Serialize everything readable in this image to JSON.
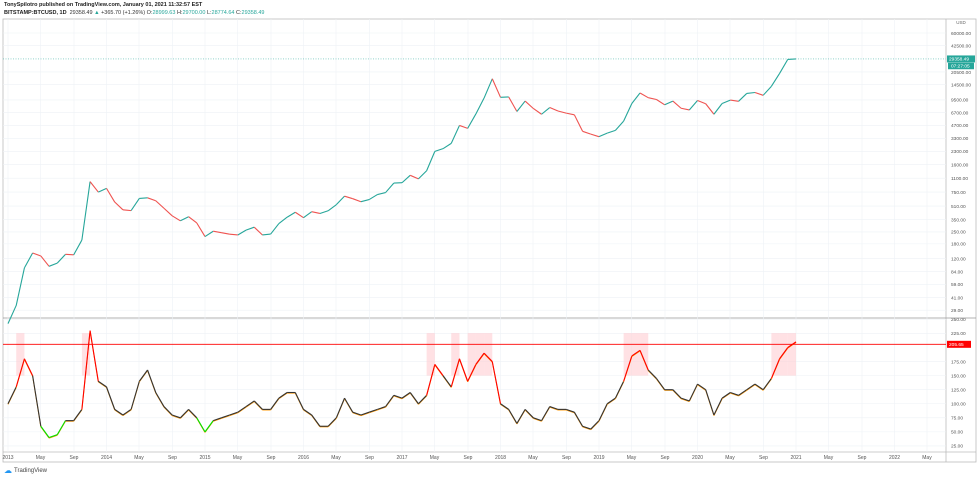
{
  "header": {
    "publisher_line": "TonySpilotro published on TradingView.com, January 01, 2021 11:32:57 EST",
    "symbol": "BITSTAMP:BTCUSD, 1D",
    "last": "29358.49",
    "change": "+365.70 (+1.26%)",
    "open_label": "O:",
    "open": "28999.63",
    "high_label": "H:",
    "high": "29700.00",
    "low_label": "L:",
    "low": "28774.64",
    "close_label": "C:",
    "close": "29358.49"
  },
  "price_axis": {
    "currency": "USD",
    "ticks": [
      60000,
      42500,
      20500,
      14500,
      9500,
      6700,
      4700,
      3300,
      2300,
      1600,
      1100,
      750,
      510,
      350,
      250,
      180,
      120,
      84,
      59,
      41,
      29
    ],
    "last_price_badge": "29358.49",
    "countdown_badge": "07:27:05"
  },
  "indicator_axis": {
    "ticks": [
      250,
      225,
      175,
      150,
      125,
      100,
      75,
      50,
      25
    ],
    "threshold_badge": "205.65"
  },
  "time_axis": {
    "labels": [
      {
        "t": "2013",
        "d": 2013.0
      },
      {
        "t": "May",
        "d": 2013.33
      },
      {
        "t": "Sep",
        "d": 2013.67
      },
      {
        "t": "2014",
        "d": 2014.0
      },
      {
        "t": "May",
        "d": 2014.33
      },
      {
        "t": "Sep",
        "d": 2014.67
      },
      {
        "t": "2015",
        "d": 2015.0
      },
      {
        "t": "May",
        "d": 2015.33
      },
      {
        "t": "Sep",
        "d": 2015.67
      },
      {
        "t": "2016",
        "d": 2016.0
      },
      {
        "t": "May",
        "d": 2016.33
      },
      {
        "t": "Sep",
        "d": 2016.67
      },
      {
        "t": "2017",
        "d": 2017.0
      },
      {
        "t": "May",
        "d": 2017.33
      },
      {
        "t": "Sep",
        "d": 2017.67
      },
      {
        "t": "2018",
        "d": 2018.0
      },
      {
        "t": "May",
        "d": 2018.33
      },
      {
        "t": "Sep",
        "d": 2018.67
      },
      {
        "t": "2019",
        "d": 2019.0
      },
      {
        "t": "May",
        "d": 2019.33
      },
      {
        "t": "Sep",
        "d": 2019.67
      },
      {
        "t": "2020",
        "d": 2020.0
      },
      {
        "t": "May",
        "d": 2020.33
      },
      {
        "t": "Sep",
        "d": 2020.67
      },
      {
        "t": "2021",
        "d": 2021.0
      },
      {
        "t": "May",
        "d": 2021.33
      },
      {
        "t": "Sep",
        "d": 2021.67
      },
      {
        "t": "2022",
        "d": 2022.0
      },
      {
        "t": "May",
        "d": 2022.33
      }
    ]
  },
  "branding": {
    "logo_text": "TradingView"
  },
  "colors": {
    "up": "#26a69a",
    "down": "#ef5350",
    "threshold": "#ff0000",
    "overbought": "#ff0000",
    "oversold": "#00e000",
    "indicator_line": "#333333",
    "indicator_shadow": "#ff9800"
  },
  "chart_data": [
    {
      "type": "line",
      "title": "BITSTAMP:BTCUSD, 1D",
      "scale": "log",
      "ylim": [
        25,
        70000
      ],
      "xlim": [
        "2013-01",
        "2022-07"
      ],
      "grid": true,
      "x": [
        "2013-01",
        "2013-02",
        "2013-03",
        "2013-04",
        "2013-05",
        "2013-06",
        "2013-07",
        "2013-08",
        "2013-09",
        "2013-10",
        "2013-11",
        "2013-12",
        "2014-01",
        "2014-02",
        "2014-03",
        "2014-04",
        "2014-05",
        "2014-06",
        "2014-07",
        "2014-08",
        "2014-09",
        "2014-10",
        "2014-11",
        "2014-12",
        "2015-01",
        "2015-02",
        "2015-03",
        "2015-04",
        "2015-05",
        "2015-06",
        "2015-07",
        "2015-08",
        "2015-09",
        "2015-10",
        "2015-11",
        "2015-12",
        "2016-01",
        "2016-02",
        "2016-03",
        "2016-04",
        "2016-05",
        "2016-06",
        "2016-07",
        "2016-08",
        "2016-09",
        "2016-10",
        "2016-11",
        "2016-12",
        "2017-01",
        "2017-02",
        "2017-03",
        "2017-04",
        "2017-05",
        "2017-06",
        "2017-07",
        "2017-08",
        "2017-09",
        "2017-10",
        "2017-11",
        "2017-12",
        "2018-01",
        "2018-02",
        "2018-03",
        "2018-04",
        "2018-05",
        "2018-06",
        "2018-07",
        "2018-08",
        "2018-09",
        "2018-10",
        "2018-11",
        "2018-12",
        "2019-01",
        "2019-02",
        "2019-03",
        "2019-04",
        "2019-05",
        "2019-06",
        "2019-07",
        "2019-08",
        "2019-09",
        "2019-10",
        "2019-11",
        "2019-12",
        "2020-01",
        "2020-02",
        "2020-03",
        "2020-04",
        "2020-05",
        "2020-06",
        "2020-07",
        "2020-08",
        "2020-09",
        "2020-10",
        "2020-11",
        "2020-12",
        "2021-01"
      ],
      "values": [
        20,
        33,
        93,
        140,
        129,
        97,
        106,
        135,
        133,
        200,
        1000,
        750,
        830,
        570,
        460,
        450,
        630,
        640,
        590,
        480,
        390,
        340,
        380,
        320,
        220,
        255,
        245,
        235,
        230,
        263,
        285,
        230,
        236,
        315,
        375,
        430,
        370,
        437,
        416,
        448,
        530,
        670,
        625,
        575,
        610,
        700,
        740,
        960,
        970,
        1190,
        1080,
        1350,
        2300,
        2480,
        2870,
        4700,
        4340,
        6450,
        10000,
        17000,
        10200,
        10300,
        6900,
        9200,
        7500,
        6400,
        7700,
        7000,
        6600,
        6300,
        4000,
        3700,
        3450,
        3800,
        4100,
        5300,
        8600,
        11500,
        10100,
        9600,
        8300,
        9200,
        7550,
        7200,
        9350,
        8550,
        6400,
        8600,
        9450,
        9140,
        11350,
        11650,
        10780,
        13800,
        19700,
        29000,
        29358
      ]
    },
    {
      "type": "line",
      "ylim": [
        0,
        260
      ],
      "threshold": 205.65,
      "grid": true,
      "values": [
        100,
        130,
        180,
        150,
        60,
        40,
        45,
        70,
        70,
        90,
        230,
        140,
        130,
        90,
        80,
        90,
        140,
        160,
        120,
        95,
        80,
        75,
        90,
        75,
        50,
        70,
        75,
        80,
        85,
        95,
        105,
        90,
        90,
        110,
        120,
        120,
        90,
        80,
        60,
        60,
        75,
        110,
        85,
        80,
        85,
        90,
        95,
        115,
        110,
        120,
        100,
        115,
        170,
        150,
        130,
        180,
        140,
        170,
        190,
        175,
        100,
        90,
        65,
        90,
        75,
        70,
        95,
        90,
        90,
        85,
        60,
        55,
        70,
        100,
        110,
        140,
        185,
        195,
        160,
        145,
        125,
        125,
        110,
        105,
        135,
        125,
        80,
        110,
        120,
        115,
        125,
        135,
        125,
        145,
        180,
        200,
        210
      ]
    }
  ]
}
